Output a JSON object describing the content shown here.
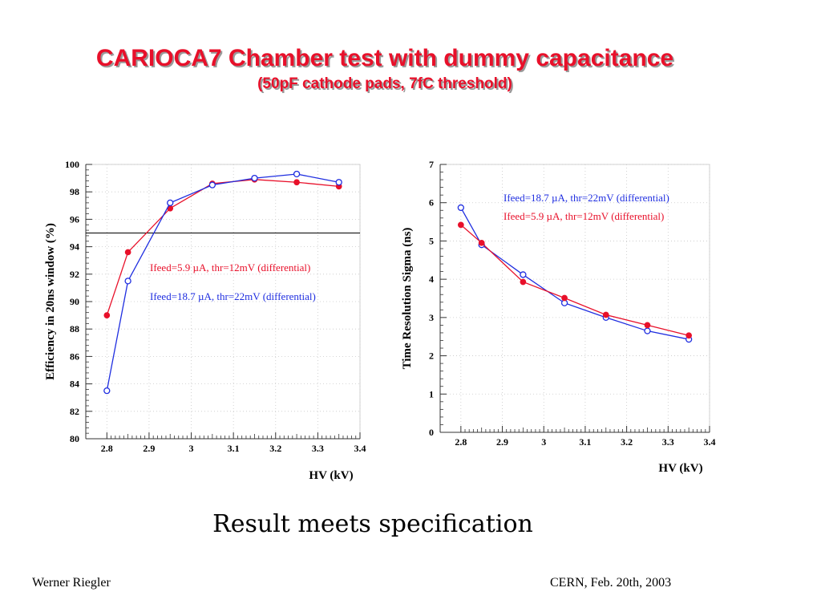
{
  "slide": {
    "title": "CARIOCA7 Chamber test with dummy capacitance",
    "subtitle": "(50pF cathode pads, 7fC threshold)",
    "conclusion": "Result meets specification",
    "footer_left": "Werner Riegler",
    "footer_right": "CERN, Feb. 20th, 2003"
  },
  "colors": {
    "red": "#e8102a",
    "blue": "#1f2ee0",
    "spec_line": "#000000"
  },
  "chart_data": [
    {
      "type": "line",
      "title": "",
      "xlabel": "HV (kV)",
      "ylabel": "Efficiency in 20ns window (%)",
      "xlim": [
        2.75,
        3.4
      ],
      "ylim": [
        80,
        100
      ],
      "xticks": [
        2.8,
        2.9,
        3,
        3.1,
        3.2,
        3.3,
        3.4
      ],
      "yticks": [
        80,
        82,
        84,
        86,
        88,
        90,
        92,
        94,
        96,
        98,
        100
      ],
      "grid": true,
      "reference_line_y": 95,
      "series": [
        {
          "name": "Ifeed=5.9 µA, thr=12mV (differential)",
          "color": "red",
          "marker": "filled-circle",
          "x": [
            2.8,
            2.85,
            2.95,
            3.05,
            3.15,
            3.25,
            3.35
          ],
          "y": [
            89.0,
            93.6,
            96.8,
            98.6,
            98.9,
            98.7,
            98.4
          ]
        },
        {
          "name": "Ifeed=18.7 µA, thr=22mV (differential)",
          "color": "blue",
          "marker": "open-circle",
          "x": [
            2.8,
            2.85,
            2.95,
            3.05,
            3.15,
            3.25,
            3.35
          ],
          "y": [
            83.5,
            91.5,
            97.2,
            98.5,
            99.0,
            99.3,
            98.7
          ]
        }
      ]
    },
    {
      "type": "line",
      "title": "",
      "xlabel": "HV (kV)",
      "ylabel": "Time Resolution Sigma (ns)",
      "xlim": [
        2.75,
        3.4
      ],
      "ylim": [
        0,
        7
      ],
      "xticks": [
        2.8,
        2.9,
        3,
        3.1,
        3.2,
        3.3,
        3.4
      ],
      "yticks": [
        0,
        1,
        2,
        3,
        4,
        5,
        6,
        7
      ],
      "grid": true,
      "series": [
        {
          "name": "Ifeed=18.7 µA, thr=22mV (differential)",
          "color": "blue",
          "marker": "open-circle",
          "x": [
            2.8,
            2.85,
            2.95,
            3.05,
            3.15,
            3.25,
            3.35
          ],
          "y": [
            5.87,
            4.9,
            4.12,
            3.38,
            3.0,
            2.65,
            2.43
          ]
        },
        {
          "name": "Ifeed=5.9 µA, thr=12mV (differential)",
          "color": "red",
          "marker": "filled-circle",
          "x": [
            2.8,
            2.85,
            2.95,
            3.05,
            3.15,
            3.25,
            3.35
          ],
          "y": [
            5.42,
            4.95,
            3.93,
            3.51,
            3.07,
            2.8,
            2.53
          ]
        }
      ]
    }
  ]
}
